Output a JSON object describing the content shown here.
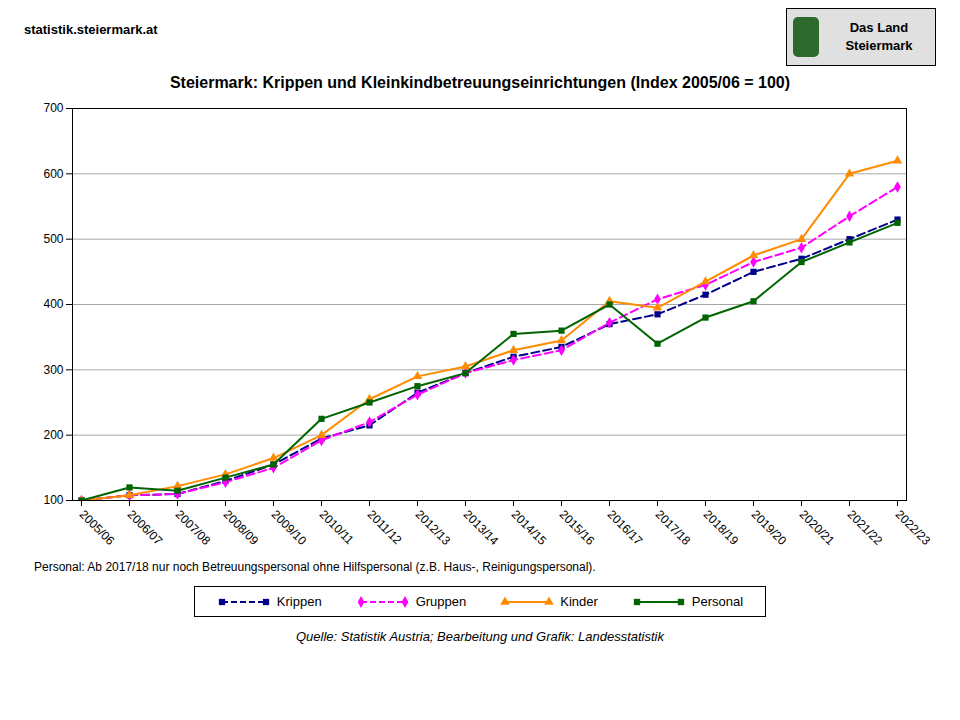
{
  "chart_data": {
    "type": "line",
    "title": "Steiermark: Krippen und Kleinkindbetreuungseinrichtungen (Index 2005/06 = 100)",
    "categories": [
      "2005/06",
      "2006/07",
      "2007/08",
      "2008/09",
      "2009/10",
      "2010/11",
      "2011/12",
      "2012/13",
      "2013/14",
      "2014/15",
      "2015/16",
      "2016/17",
      "2017/18",
      "2018/19",
      "2019/20",
      "2020/21",
      "2021/22",
      "2022/23"
    ],
    "series": [
      {
        "name": "Krippen",
        "color": "#00008B",
        "marker": "square",
        "line_style": "dashed",
        "values": [
          100,
          108,
          110,
          130,
          155,
          195,
          215,
          265,
          295,
          320,
          335,
          370,
          385,
          415,
          450,
          470,
          500,
          530
        ]
      },
      {
        "name": "Gruppen",
        "color": "#FF00FF",
        "marker": "diamond",
        "line_style": "dashed",
        "values": [
          100,
          108,
          110,
          128,
          150,
          192,
          220,
          262,
          295,
          315,
          330,
          372,
          408,
          430,
          465,
          487,
          535,
          580
        ]
      },
      {
        "name": "Kinder",
        "color": "#FF8C00",
        "marker": "triangle",
        "line_style": "solid",
        "values": [
          100,
          108,
          122,
          140,
          165,
          200,
          255,
          290,
          305,
          330,
          345,
          405,
          395,
          435,
          475,
          500,
          600,
          620
        ]
      },
      {
        "name": "Personal",
        "color": "#006400",
        "marker": "square",
        "line_style": "solid",
        "values": [
          100,
          120,
          115,
          135,
          155,
          225,
          250,
          275,
          295,
          355,
          360,
          400,
          340,
          380,
          405,
          465,
          495,
          525
        ]
      }
    ],
    "ylim": [
      100,
      700
    ],
    "yticks": [
      100,
      200,
      300,
      400,
      500,
      600,
      700
    ],
    "grid": true,
    "legend": "bottom",
    "footnote": "Personal: Ab 2017/18  nur noch Betreuungspersonal ohne Hilfspersonal (z.B. Haus-, Reinigungspersonal).",
    "source": "Quelle: Statistik Austria; Bearbeitung und Grafik: Landesstatistik",
    "website": "statistik.steiermark.at",
    "logo": [
      "Das Land",
      "Steiermark"
    ]
  }
}
